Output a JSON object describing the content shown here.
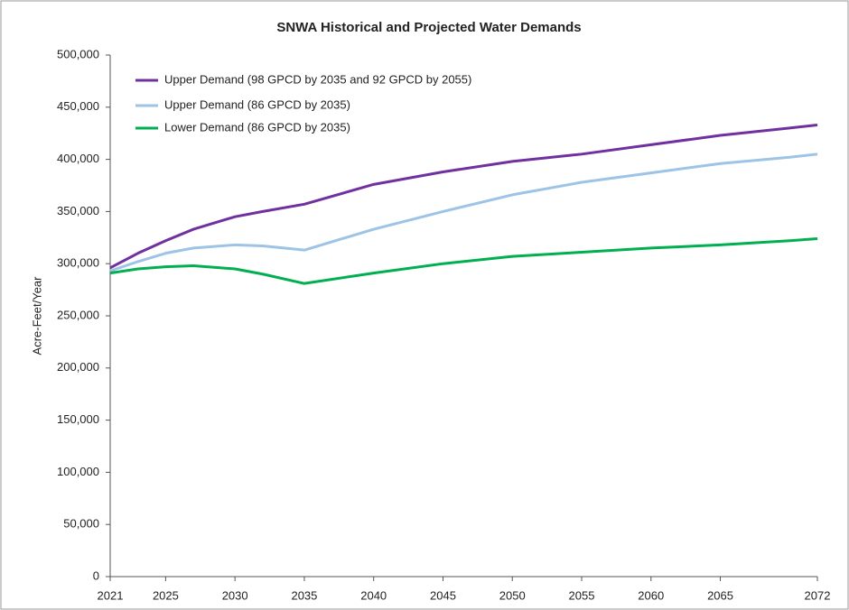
{
  "chart_data": {
    "type": "line",
    "title": "SNWA Historical and Projected Water Demands",
    "y_label": "Acre-Feet/Year",
    "x": [
      2021,
      2023,
      2025,
      2027,
      2030,
      2032,
      2035,
      2040,
      2045,
      2050,
      2055,
      2060,
      2065,
      2070,
      2072
    ],
    "series": [
      {
        "name": "Upper Demand (98 GPCD by 2035 and 92 GPCD by 2055)",
        "color": "#7030a0",
        "values": [
          296000,
          310000,
          322000,
          333000,
          345000,
          350000,
          357000,
          376000,
          388000,
          398000,
          405000,
          414000,
          423000,
          430000,
          433000
        ]
      },
      {
        "name": "Upper Demand (86 GPCD by 2035)",
        "color": "#9dc3e6",
        "values": [
          293000,
          302000,
          310000,
          315000,
          318000,
          317000,
          313000,
          333000,
          350000,
          366000,
          378000,
          387000,
          396000,
          402000,
          405000
        ]
      },
      {
        "name": "Lower Demand (86 GPCD by 2035)",
        "color": "#00b050",
        "values": [
          291000,
          295000,
          297000,
          298000,
          295000,
          290000,
          281000,
          291000,
          300000,
          307000,
          311000,
          315000,
          318000,
          322000,
          324000
        ]
      }
    ],
    "xlim": [
      2021,
      2072
    ],
    "xticks": [
      2021,
      2025,
      2030,
      2035,
      2040,
      2045,
      2050,
      2055,
      2060,
      2065,
      2072
    ],
    "ylim": [
      0,
      500000
    ],
    "yticks": [
      0,
      {
        "value": 50000,
        "label": "50,000"
      },
      {
        "value": 100000,
        "label": "100,000"
      },
      {
        "value": 150000,
        "label": "150,000"
      },
      {
        "value": 200000,
        "label": "200,000"
      },
      {
        "value": 250000,
        "label": "250,000"
      },
      {
        "value": 300000,
        "label": "300,000"
      },
      {
        "value": 350000,
        "label": "350,000"
      },
      {
        "value": 400000,
        "label": "400,000"
      },
      {
        "value": 450000,
        "label": "450,000"
      },
      {
        "value": 500000,
        "label": "500,000"
      }
    ],
    "grid": false,
    "legend": "upper-left"
  }
}
